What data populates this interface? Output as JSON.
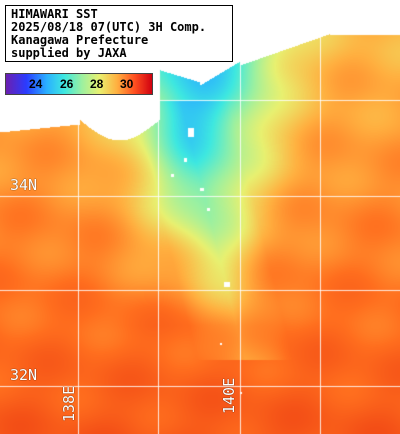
{
  "header": {
    "line1": "HIMAWARI SST",
    "line2": "2025/08/18 07(UTC) 3H Comp.",
    "line3": "Kanagawa Prefecture",
    "line4": "supplied by JAXA"
  },
  "color_scale": {
    "ticks": [
      "24",
      "26",
      "28",
      "30"
    ],
    "colors": {
      "cold": "#2a3cff",
      "mid": "#9cf0a0",
      "warm": "#ff8030",
      "hot": "#d00010",
      "land": "#ffffff"
    }
  },
  "graticule": {
    "latitudes": [
      "34N",
      "32N"
    ],
    "longitudes": [
      "138E",
      "140E"
    ]
  }
}
